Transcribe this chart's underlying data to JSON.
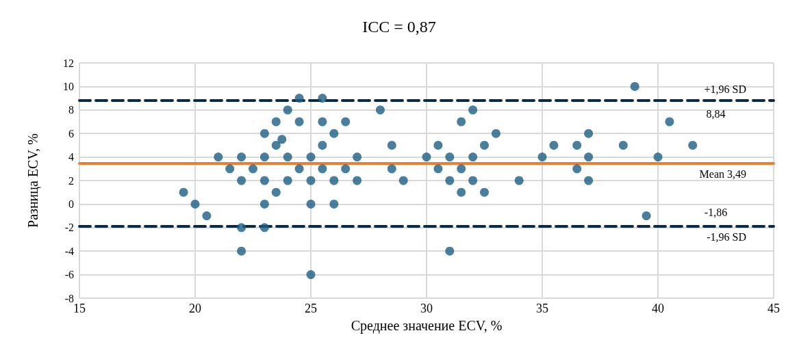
{
  "chart_data": {
    "type": "scatter",
    "title": "ICC = 0,87",
    "xlabel": "Среднее значение ECV, %",
    "ylabel": "Разница ECV, %",
    "xlim": [
      15,
      45
    ],
    "xticks": [
      15,
      20,
      25,
      30,
      35,
      40,
      45
    ],
    "ylim": [
      -8,
      12
    ],
    "yticks": [
      -8,
      -6,
      -4,
      -2,
      0,
      2,
      4,
      6,
      8,
      10,
      12
    ],
    "grid": true,
    "marker": "circle",
    "series": [
      {
        "color": "#1b5e83",
        "x": [
          24.5,
          25.5,
          24,
          23.5,
          24.5,
          25.5,
          23,
          23.75,
          23.5,
          25.5,
          21,
          22,
          23,
          24,
          25,
          21.5,
          22.5,
          24.5,
          25.5,
          22,
          23,
          24,
          25,
          19.5,
          23.5,
          20,
          23,
          25,
          20.5,
          22,
          23,
          22,
          25,
          26.5,
          26,
          27,
          26.5,
          26,
          27,
          26,
          28,
          28.5,
          28.5,
          29,
          30,
          30.5,
          30.5,
          31,
          31,
          31,
          31.5,
          31.5,
          31.5,
          32,
          32,
          32,
          32.5,
          32.5,
          33,
          34,
          35,
          35.5,
          36.5,
          36.5,
          37,
          37,
          37,
          38.5,
          39,
          39.5,
          40,
          40.5,
          41.5
        ],
        "values": [
          9,
          9,
          8,
          7,
          7,
          7,
          6,
          5.5,
          5,
          5,
          4,
          4,
          4,
          4,
          4,
          3,
          3,
          3,
          3,
          2,
          2,
          2,
          2,
          1,
          1,
          0,
          0,
          0,
          -1,
          -2,
          -2,
          -4,
          -6,
          7,
          6,
          4,
          3,
          2,
          2,
          0,
          8,
          5,
          3,
          2,
          4,
          5,
          3,
          4,
          2,
          -4,
          7,
          3,
          1,
          8,
          4,
          2,
          5,
          1,
          6,
          2,
          4,
          5,
          5,
          3,
          6,
          4,
          2,
          5,
          10,
          -1,
          4,
          7,
          5
        ]
      }
    ],
    "ref_lines": [
      {
        "axis": "y",
        "value": 8.84,
        "label": "+1,96 SD",
        "color": "#0d2a45",
        "line_style": "dashed"
      },
      {
        "axis": "y",
        "value": 3.49,
        "label": "Mean 3,49",
        "color": "#ed7d31",
        "line_style": "solid"
      },
      {
        "axis": "y",
        "value": -1.86,
        "label": "-1,96 SD",
        "color": "#0d2a45",
        "line_style": "dashed"
      }
    ],
    "annotations": [
      {
        "text": "8,84",
        "x": 42.5,
        "y": 8.84
      },
      {
        "text": "-1,86",
        "x": 42.5,
        "y": -1.86
      }
    ]
  }
}
